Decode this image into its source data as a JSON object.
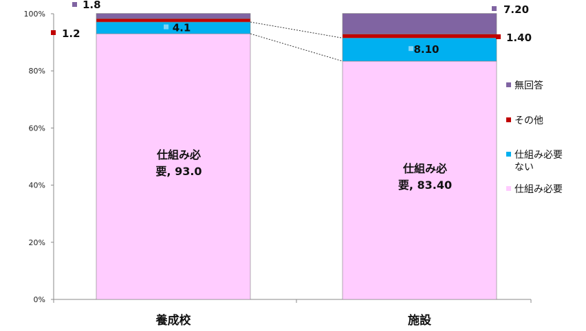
{
  "chart_data": {
    "type": "bar",
    "stacked": true,
    "percent": true,
    "categories": [
      "養成校",
      "施設"
    ],
    "y_ticks": [
      "0%",
      "20%",
      "40%",
      "60%",
      "80%",
      "100%"
    ],
    "ylim": [
      0,
      100
    ],
    "series": [
      {
        "name": "仕組み必要",
        "color": "#FFCCFF",
        "values": [
          93.0,
          83.4
        ],
        "labels": [
          "仕組み必\n要, 93.0",
          "仕組み必\n要, 83.40"
        ]
      },
      {
        "name": "仕組み必要ない",
        "color": "#00B0F0",
        "values": [
          4.1,
          8.1
        ],
        "labels": [
          "4.1",
          "8.10"
        ]
      },
      {
        "name": "その他",
        "color": "#C00000",
        "values": [
          1.2,
          1.4
        ],
        "labels": [
          "1.2",
          "1.40"
        ]
      },
      {
        "name": "無回答",
        "color": "#8064A2",
        "values": [
          1.8,
          7.2
        ],
        "labels": [
          "1.8",
          "7.20"
        ]
      }
    ],
    "legend": {
      "position": "right",
      "order": [
        "無回答",
        "その他",
        "仕組み必要ない",
        "仕組み必要"
      ],
      "entries": {
        "無回答": [
          "無回答"
        ],
        "その他": [
          "その他"
        ],
        "仕組み必要ない": [
          "仕組み必要",
          "ない"
        ],
        "仕組み必要": [
          "仕組み必要"
        ]
      }
    },
    "grid": false
  }
}
